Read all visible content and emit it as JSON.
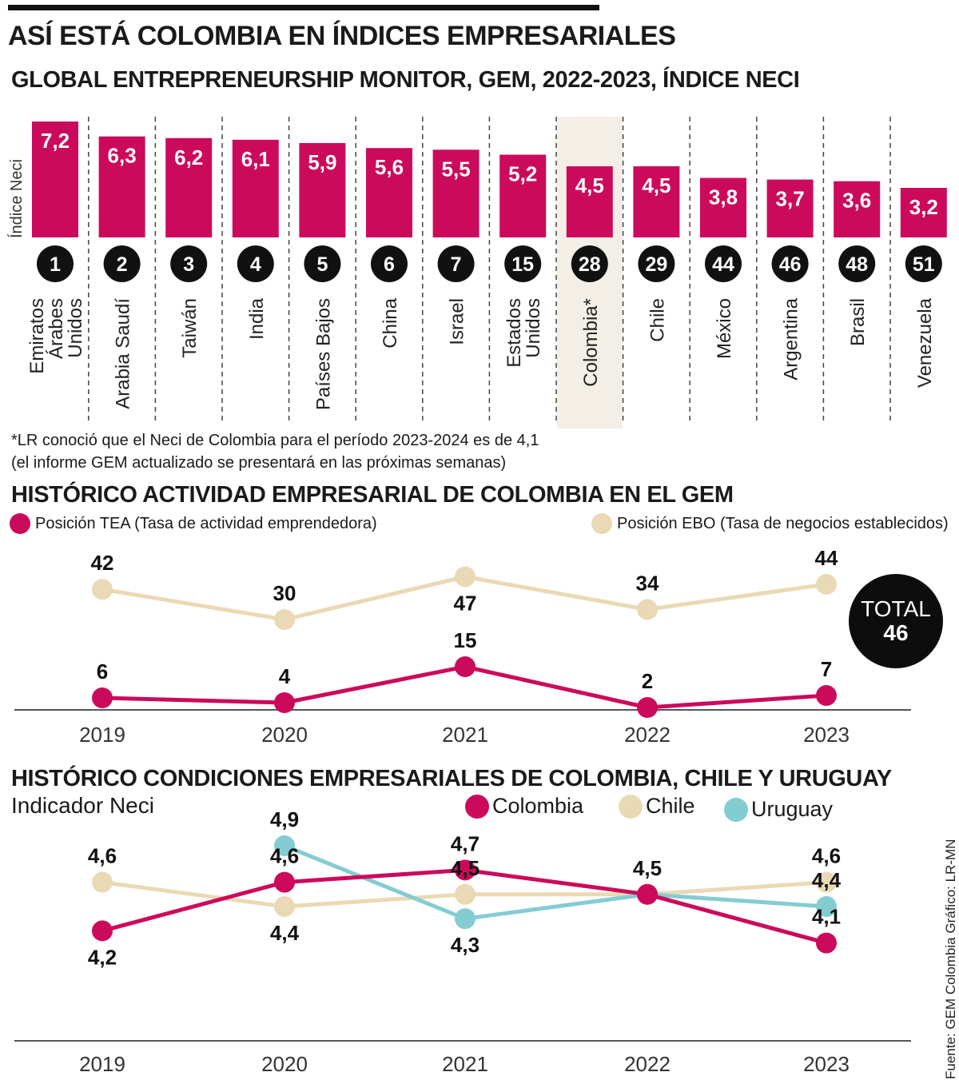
{
  "header": {
    "title": "ASÍ ESTÁ COLOMBIA EN ÍNDICES EMPRESARIALES"
  },
  "colors": {
    "magenta": "#cc0a5b",
    "beige": "#ead9b5",
    "teal": "#83ccd2",
    "highlight": "#f4efe6",
    "dark": "#111111"
  },
  "notes": {
    "line1": "*LR conoció que el Neci de Colombia para el período 2023-2024 es de 4,1",
    "line2": "(el informe GEM actualizado se presentará en las próximas semanas)"
  },
  "source": "Fuente: GEM Colombia   Gráfico: LR-MN",
  "chart_data": [
    {
      "type": "bar",
      "title": "GLOBAL ENTREPRENEURSHIP MONITOR, GEM, 2022-2023, ÍNDICE NECI",
      "ylabel": "Índice Neci",
      "categories": [
        "Emiratos Árabes Unidos",
        "Arabia Saudí",
        "Taiwán",
        "India",
        "Países Bajos",
        "China",
        "Israel",
        "Estados Unidos",
        "Colombia*",
        "Chile",
        "México",
        "Argentina",
        "Brasil",
        "Venezuela"
      ],
      "category_lines": [
        [
          "Emiratos",
          "Árabes",
          "Unidos"
        ],
        [
          "Arabia Saudí"
        ],
        [
          "Taiwán"
        ],
        [
          "India"
        ],
        [
          "Países Bajos"
        ],
        [
          "China"
        ],
        [
          "Israel"
        ],
        [
          "Estados",
          "Unidos"
        ],
        [
          "Colombia*"
        ],
        [
          "Chile"
        ],
        [
          "México"
        ],
        [
          "Argentina"
        ],
        [
          "Brasil"
        ],
        [
          "Venezuela"
        ]
      ],
      "values": [
        7.2,
        6.3,
        6.2,
        6.1,
        5.9,
        5.6,
        5.5,
        5.2,
        4.5,
        4.5,
        3.8,
        3.7,
        3.6,
        3.2
      ],
      "value_labels": [
        "7,2",
        "6,3",
        "6,2",
        "6,1",
        "5,9",
        "5,6",
        "5,5",
        "5,2",
        "4,5",
        "4,5",
        "3,8",
        "3,7",
        "3,6",
        "3,2"
      ],
      "ranks": [
        "1",
        "2",
        "3",
        "4",
        "5",
        "6",
        "7",
        "15",
        "28",
        "29",
        "44",
        "46",
        "48",
        "51"
      ],
      "highlight": "Colombia*",
      "color": "#cc0a5b"
    },
    {
      "type": "line",
      "title": "HISTÓRICO ACTIVIDAD EMPRESARIAL DE COLOMBIA EN EL GEM",
      "x": [
        "2019",
        "2020",
        "2021",
        "2022",
        "2023"
      ],
      "y_inverted": true,
      "series": [
        {
          "name": "Posición TEA (Tasa de actividad emprendedora)",
          "color": "#cc0a5b",
          "values": [
            6,
            4,
            15,
            2,
            7
          ]
        },
        {
          "name": "Posición EBO (Tasa de negocios establecidos)",
          "color": "#ead9b5",
          "values": [
            42,
            30,
            47,
            34,
            44
          ]
        }
      ],
      "total_label": "TOTAL",
      "total_value": "46"
    },
    {
      "type": "line",
      "title": "HISTÓRICO CONDICIONES EMPRESARIALES DE COLOMBIA, CHILE Y URUGUAY",
      "ylabel": "Indicador Neci",
      "x": [
        "2019",
        "2020",
        "2021",
        "2022",
        "2023"
      ],
      "series": [
        {
          "name": "Colombia",
          "color": "#cc0a5b",
          "values": [
            4.2,
            4.6,
            4.7,
            4.5,
            4.1
          ],
          "labels": [
            "4,2",
            "4,6",
            "4,7",
            "",
            "4,1"
          ]
        },
        {
          "name": "Chile",
          "color": "#ead9b5",
          "values": [
            4.6,
            4.4,
            4.5,
            4.5,
            4.6
          ],
          "labels": [
            "4,6",
            "4,4",
            "4,5",
            "",
            "4,6"
          ]
        },
        {
          "name": "Uruguay",
          "color": "#83ccd2",
          "values": [
            null,
            4.9,
            4.3,
            4.5,
            4.4
          ],
          "labels": [
            "",
            "4,9",
            "4,3",
            "4,5",
            "4,4"
          ]
        }
      ]
    }
  ]
}
